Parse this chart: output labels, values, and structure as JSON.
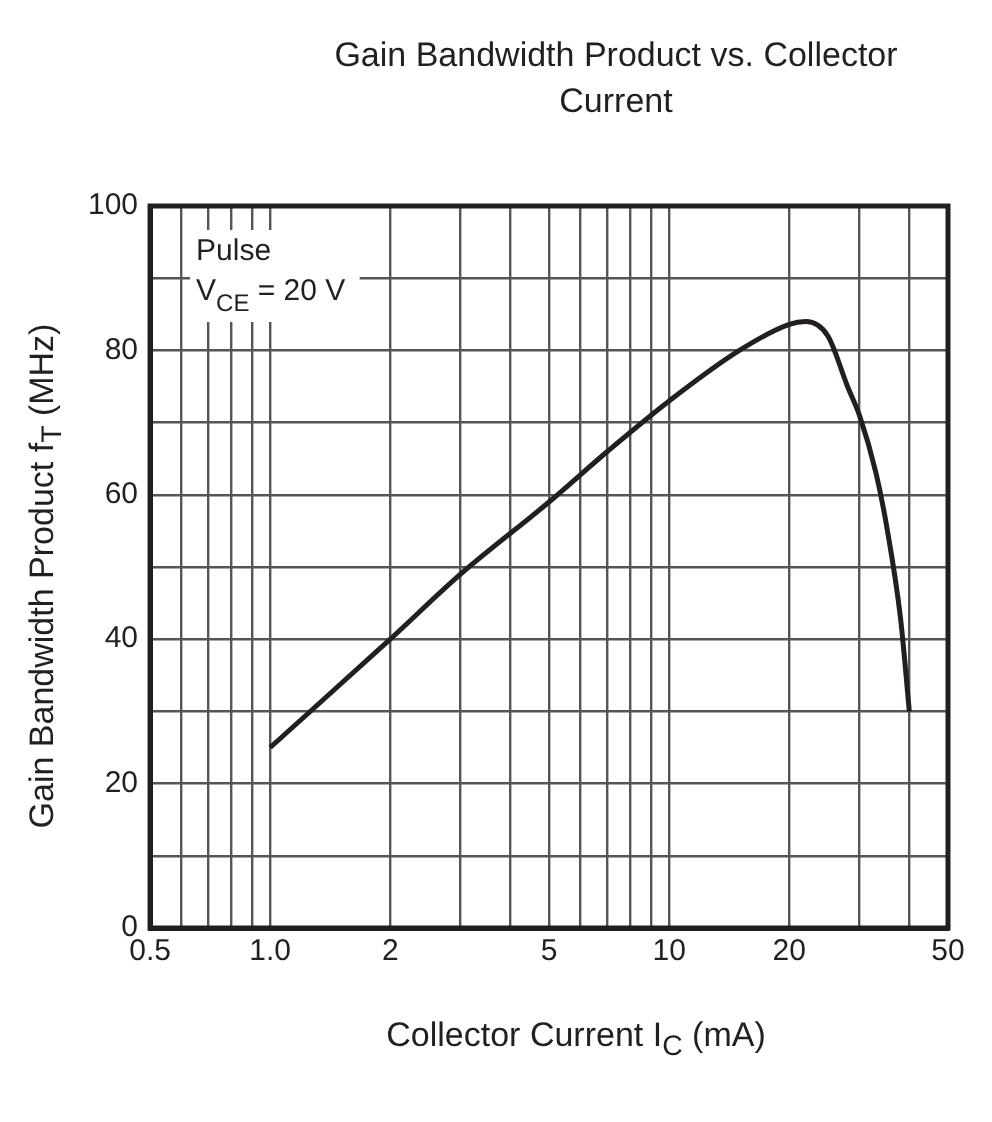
{
  "chart_data": {
    "type": "line",
    "title": "Gain Bandwidth Product vs. Collector Current",
    "xlabel": "Collector Current  I$_{C}$  (mA)",
    "ylabel": "Gain Bandwidth Product  f$_{T}$  (MHz)",
    "annotations": [
      "Pulse",
      "V$_{CE}$ = 20 V"
    ],
    "log": "x",
    "grid": true,
    "line_style": "solid",
    "xlim": [
      0.5,
      50
    ],
    "ylim": [
      0,
      100
    ],
    "xticks": [
      0.5,
      {
        "value": 0.6,
        "label": null
      },
      {
        "value": 0.7,
        "label": null
      },
      {
        "value": 0.8,
        "label": null
      },
      {
        "value": 0.9,
        "label": null
      },
      {
        "value": 1,
        "label": "1.0"
      },
      2,
      {
        "value": 3,
        "label": null
      },
      {
        "value": 4,
        "label": null
      },
      5,
      {
        "value": 6,
        "label": null
      },
      {
        "value": 7,
        "label": null
      },
      {
        "value": 8,
        "label": null
      },
      {
        "value": 9,
        "label": null
      },
      10,
      20,
      {
        "value": 30,
        "label": null
      },
      {
        "value": 40,
        "label": null
      },
      50
    ],
    "yticks": [
      0,
      {
        "value": 10,
        "label": null
      },
      20,
      {
        "value": 30,
        "label": null
      },
      40,
      {
        "value": 50,
        "label": null
      },
      60,
      {
        "value": 70,
        "label": null
      },
      80,
      {
        "value": 90,
        "label": null
      },
      100
    ],
    "series": [
      {
        "color": "#231f20",
        "x": [
          1,
          2,
          3,
          5,
          7,
          10,
          15,
          20,
          22,
          25,
          28,
          30,
          33,
          35,
          38,
          40
        ],
        "values": [
          25,
          40,
          49,
          59,
          66,
          73,
          80,
          83.6,
          84,
          82,
          75,
          71,
          63,
          56,
          43,
          30
        ]
      }
    ]
  }
}
